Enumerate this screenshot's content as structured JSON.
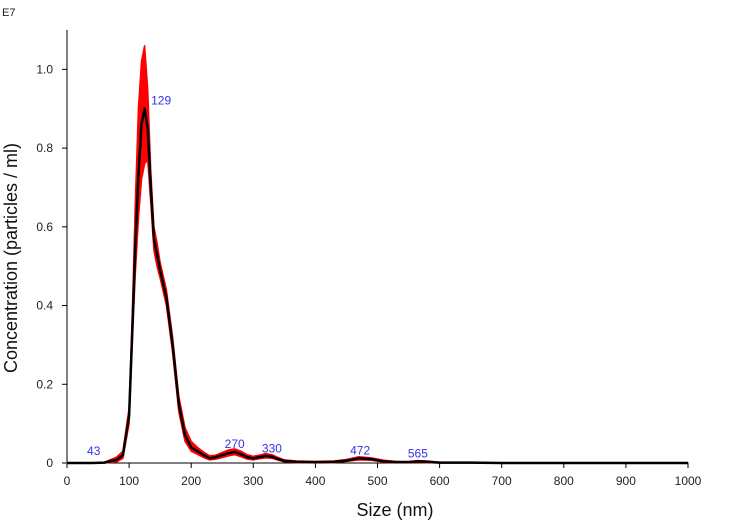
{
  "chart_data": {
    "type": "line",
    "title": "",
    "xlabel": "Size (nm)",
    "ylabel": "Concentration (particles / ml)",
    "y_exponent_label": "E7",
    "xlim": [
      0,
      1000
    ],
    "ylim": [
      0,
      1.1
    ],
    "x_ticks": [
      0,
      100,
      200,
      300,
      400,
      500,
      600,
      700,
      800,
      900,
      1000
    ],
    "y_ticks": [
      0,
      0.2,
      0.4,
      0.6,
      0.8,
      1.0
    ],
    "y_tick_labels": [
      "0",
      "0.2",
      "0.4",
      "0.6",
      "0.8",
      "1.0"
    ],
    "grid": false,
    "colors": {
      "mean_line": "#000000",
      "error_band": "#ff0000",
      "peak_labels": "#3333ee"
    },
    "series": [
      {
        "x": [
          0,
          40,
          60,
          80,
          90,
          100,
          105,
          110,
          115,
          120,
          125,
          130,
          135,
          140,
          145,
          150,
          160,
          170,
          180,
          190,
          200,
          210,
          220,
          230,
          240,
          250,
          260,
          270,
          280,
          290,
          300,
          310,
          320,
          330,
          340,
          350,
          370,
          400,
          430,
          450,
          470,
          490,
          510,
          530,
          550,
          565,
          580,
          600,
          650,
          700,
          800,
          900,
          1000
        ],
        "values": [
          0,
          0,
          0.001,
          0.008,
          0.02,
          0.12,
          0.33,
          0.55,
          0.73,
          0.86,
          0.9,
          0.85,
          0.7,
          0.57,
          0.53,
          0.49,
          0.42,
          0.3,
          0.15,
          0.07,
          0.04,
          0.03,
          0.02,
          0.012,
          0.015,
          0.02,
          0.025,
          0.028,
          0.022,
          0.015,
          0.012,
          0.015,
          0.018,
          0.016,
          0.01,
          0.005,
          0.003,
          0.002,
          0.003,
          0.006,
          0.012,
          0.01,
          0.004,
          0.002,
          0.002,
          0.004,
          0.003,
          0.001,
          0.001,
          0,
          0,
          0,
          0
        ],
        "upper": [
          0,
          0,
          0.002,
          0.015,
          0.03,
          0.14,
          0.37,
          0.66,
          0.9,
          1.02,
          1.06,
          0.95,
          0.74,
          0.6,
          0.56,
          0.51,
          0.44,
          0.32,
          0.17,
          0.09,
          0.055,
          0.04,
          0.028,
          0.018,
          0.02,
          0.027,
          0.033,
          0.036,
          0.03,
          0.021,
          0.017,
          0.02,
          0.024,
          0.021,
          0.014,
          0.008,
          0.005,
          0.004,
          0.005,
          0.009,
          0.016,
          0.013,
          0.007,
          0.004,
          0.004,
          0.006,
          0.005,
          0.002,
          0.002,
          0,
          0,
          0,
          0
        ],
        "lower": [
          0,
          0,
          0,
          0.003,
          0.012,
          0.1,
          0.3,
          0.48,
          0.62,
          0.72,
          0.76,
          0.77,
          0.66,
          0.54,
          0.5,
          0.47,
          0.4,
          0.28,
          0.13,
          0.055,
          0.03,
          0.022,
          0.014,
          0.008,
          0.01,
          0.014,
          0.018,
          0.021,
          0.016,
          0.01,
          0.008,
          0.011,
          0.013,
          0.012,
          0.007,
          0.003,
          0.001,
          0.001,
          0.001,
          0.004,
          0.008,
          0.007,
          0.002,
          0.001,
          0.001,
          0.002,
          0.001,
          0,
          0,
          0,
          0,
          0,
          0
        ]
      }
    ],
    "peak_labels": [
      {
        "text": "43",
        "x": 43,
        "y": 0.01
      },
      {
        "text": "129",
        "x": 129,
        "y": 0.9
      },
      {
        "text": "270",
        "x": 270,
        "y": 0.028
      },
      {
        "text": "330",
        "x": 330,
        "y": 0.016
      },
      {
        "text": "472",
        "x": 472,
        "y": 0.012
      },
      {
        "text": "565",
        "x": 565,
        "y": 0.004
      }
    ]
  }
}
